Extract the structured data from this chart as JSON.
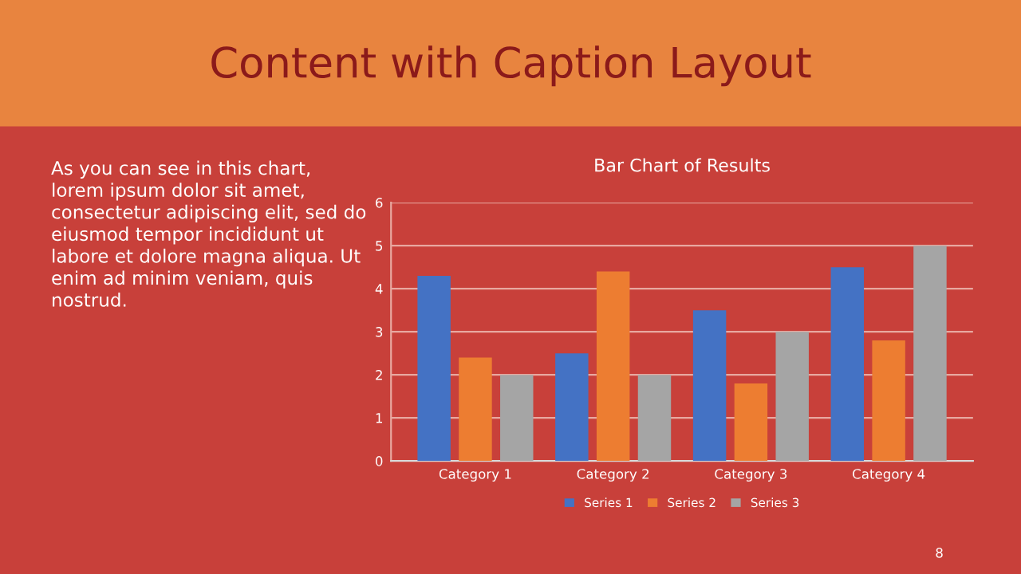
{
  "chart_data": {
    "type": "bar",
    "title": "Bar Chart of Results",
    "categories": [
      "Category 1",
      "Category 2",
      "Category 3",
      "Category 4"
    ],
    "series": [
      {
        "name": "Series 1",
        "color": "#4472c4",
        "values": [
          4.3,
          2.5,
          3.5,
          4.5
        ]
      },
      {
        "name": "Series 2",
        "color": "#ed7d31",
        "values": [
          2.4,
          4.4,
          1.8,
          2.8
        ]
      },
      {
        "name": "Series 3",
        "color": "#a5a5a5",
        "values": [
          2,
          2,
          3,
          5
        ]
      }
    ],
    "ylim": [
      0,
      6
    ],
    "yticks": [
      0,
      1,
      2,
      3,
      4,
      5,
      6
    ],
    "grid": "y",
    "legend": "bottom",
    "annotations": [
      "Content with Caption Layout",
      "As you can see in this chart,\nlorem ipsum dolor sit amet,\nconsectetur adipiscing elit, sed do\neiusmod tempor incididunt ut\nlabore et dolore magna aliqua. Ut\nenim ad minim veniam, quis\nnostrud.",
      "8"
    ]
  }
}
